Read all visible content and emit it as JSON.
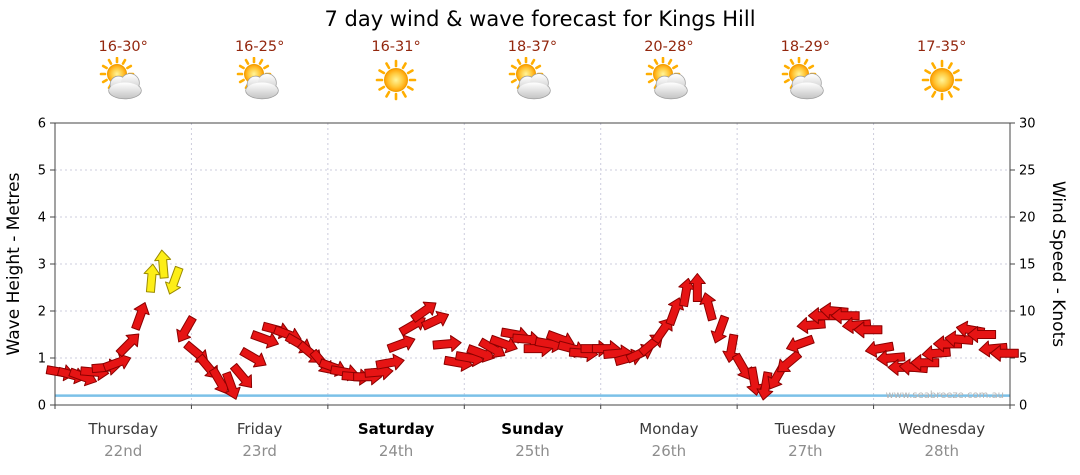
{
  "title": "7 day wind & wave forecast for Kings Hill",
  "watermark": "www.seabreeze.com.au",
  "axes": {
    "left_label": "Wave Height - Metres",
    "right_label": "Wind Speed - Knots"
  },
  "days": [
    {
      "temp": "16-30°",
      "icon": "sun-cloud",
      "name": "Thursday",
      "date": "22nd",
      "weekend": false
    },
    {
      "temp": "16-25°",
      "icon": "sun-cloud",
      "name": "Friday",
      "date": "23rd",
      "weekend": false
    },
    {
      "temp": "16-31°",
      "icon": "sun",
      "name": "Saturday",
      "date": "24th",
      "weekend": true
    },
    {
      "temp": "18-37°",
      "icon": "sun-cloud",
      "name": "Sunday",
      "date": "25th",
      "weekend": true
    },
    {
      "temp": "20-28°",
      "icon": "sun-cloud",
      "name": "Monday",
      "date": "26th",
      "weekend": false
    },
    {
      "temp": "18-29°",
      "icon": "sun-cloud",
      "name": "Tuesday",
      "date": "27th",
      "weekend": false
    },
    {
      "temp": "17-35°",
      "icon": "sun",
      "name": "Wednesday",
      "date": "28th",
      "weekend": false
    }
  ],
  "chart_data": {
    "type": "line",
    "title": "7 day wind & wave forecast for Kings Hill",
    "x_days": [
      "Thursday 22nd",
      "Friday 23rd",
      "Saturday 24th",
      "Sunday 25th",
      "Monday 26th",
      "Tuesday 27th",
      "Wednesday 28th"
    ],
    "left_axis": {
      "label": "Wave Height - Metres",
      "min": 0,
      "max": 6,
      "tick_step": 1
    },
    "right_axis": {
      "label": "Wind Speed - Knots",
      "min": 0,
      "max": 30,
      "tick_step": 5
    },
    "grid": true,
    "wave_height_metres": {
      "constant": 0.2
    },
    "wind_knots": {
      "points_per_day": 12,
      "speeds": [
        3.5,
        3.2,
        3.0,
        3.5,
        4.0,
        4.5,
        6.5,
        9.5,
        13.5,
        15.0,
        13.2,
        8.0,
        5.5,
        4.0,
        2.5,
        2.0,
        3.0,
        5.0,
        7.0,
        8.0,
        7.5,
        6.5,
        5.5,
        4.5,
        4.0,
        3.5,
        3.0,
        3.0,
        3.5,
        4.5,
        6.5,
        8.5,
        10.0,
        9.0,
        6.5,
        4.5,
        5.0,
        5.5,
        6.0,
        6.5,
        7.5,
        7.0,
        6.0,
        6.5,
        7.0,
        6.0,
        5.5,
        6.0,
        6.0,
        5.5,
        5.0,
        5.5,
        6.5,
        8.0,
        10.0,
        12.0,
        12.5,
        10.5,
        8.0,
        6.0,
        4.0,
        2.5,
        2.0,
        3.0,
        4.5,
        6.5,
        8.5,
        9.5,
        10.0,
        9.5,
        8.5,
        8.0,
        6.0,
        5.0,
        4.0,
        4.0,
        4.5,
        5.5,
        6.5,
        7.0,
        8.0,
        7.5,
        6.0,
        5.5
      ],
      "directions_deg_pointing": [
        100,
        105,
        110,
        95,
        85,
        70,
        45,
        20,
        5,
        355,
        200,
        210,
        130,
        140,
        150,
        160,
        140,
        120,
        110,
        105,
        110,
        120,
        130,
        140,
        110,
        100,
        95,
        90,
        85,
        80,
        70,
        60,
        55,
        65,
        85,
        100,
        100,
        110,
        120,
        110,
        100,
        95,
        90,
        100,
        110,
        105,
        95,
        90,
        90,
        85,
        75,
        65,
        50,
        35,
        20,
        10,
        0,
        345,
        200,
        190,
        150,
        170,
        190,
        210,
        230,
        250,
        265,
        270,
        275,
        270,
        265,
        270,
        260,
        265,
        270,
        275,
        270,
        265,
        270,
        275,
        280,
        270,
        265,
        270
      ]
    },
    "colors": {
      "arrow": "#e61414",
      "arrow_outline": "#8c0000",
      "arrow_strong": "#fdee17",
      "arrow_strong_outline": "#9a8a00",
      "strong_threshold_knots": 13,
      "wave_line": "#7bc1e8",
      "grid": "#ccccdd",
      "frame": "#444444"
    }
  }
}
